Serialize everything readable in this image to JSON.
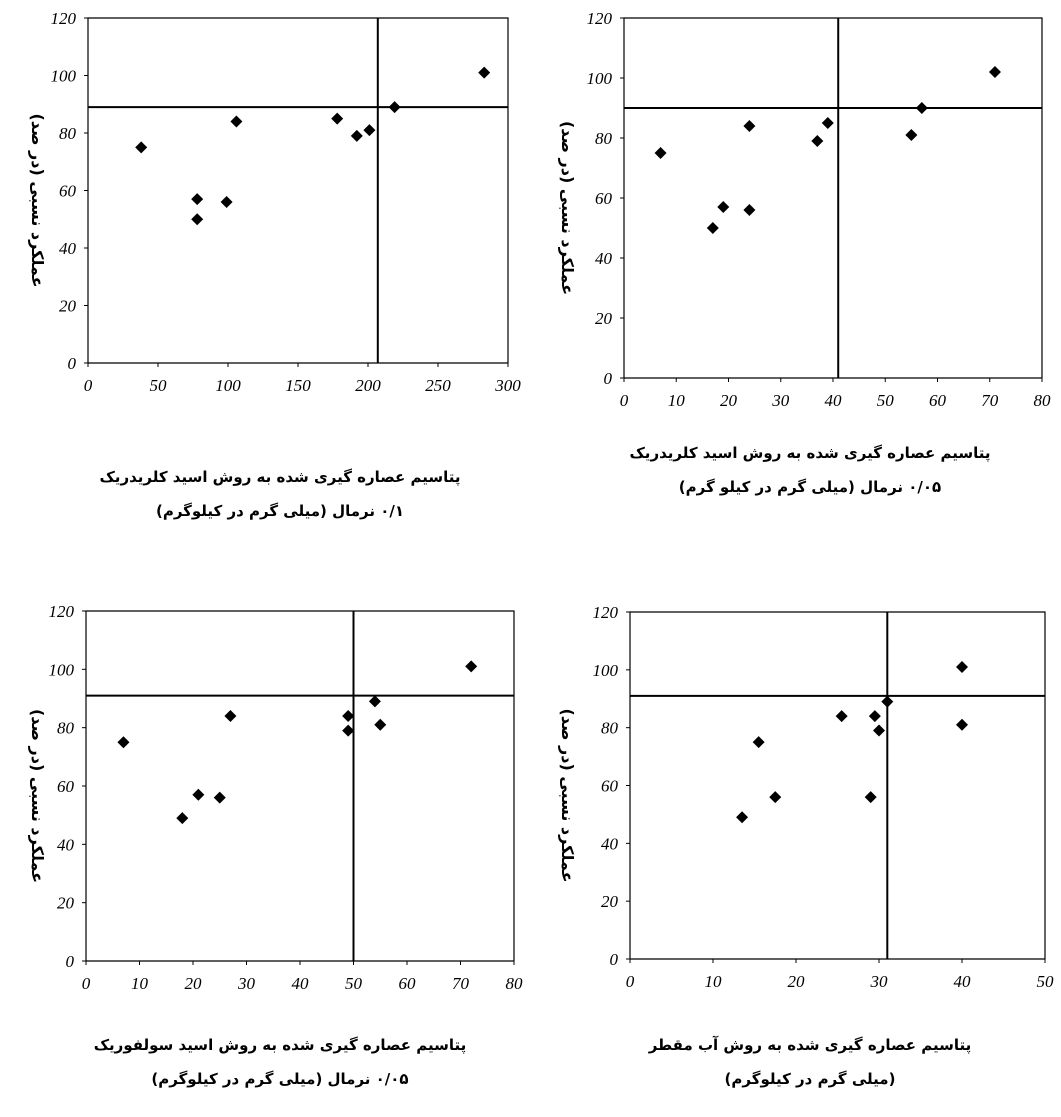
{
  "chart_data": [
    {
      "type": "scatter",
      "ylabel": "عملکرد نسبی (در صد)",
      "xlabel_lines": [
        "پتاسیم عصاره گیری شده به روش اسید کلریدریک",
        "۰/۱ نرمال (میلی گرم در کیلوگرم)"
      ],
      "xlim": [
        0,
        300
      ],
      "ylim": [
        0,
        120
      ],
      "xticks": [
        "0",
        "50",
        "100",
        "150",
        "200",
        "250",
        "300"
      ],
      "yticks": [
        "0",
        "20",
        "40",
        "60",
        "80",
        "100",
        "120"
      ],
      "points": [
        [
          38,
          75
        ],
        [
          78,
          57
        ],
        [
          78,
          50
        ],
        [
          99,
          56
        ],
        [
          106,
          84
        ],
        [
          178,
          85
        ],
        [
          192,
          79
        ],
        [
          201,
          81
        ],
        [
          219,
          89
        ],
        [
          283,
          101
        ]
      ],
      "critical_x": 207,
      "critical_y": 89
    },
    {
      "type": "scatter",
      "ylabel": "عملکرد نسبی (در صد)",
      "xlabel_lines": [
        "پتاسیم عصاره گیری شده به روش اسید کلریدریک",
        "۰/۰۵ نرمال (میلی گرم در کیلو گرم)"
      ],
      "xlim": [
        0,
        80
      ],
      "ylim": [
        0,
        120
      ],
      "xticks": [
        "0",
        "10",
        "20",
        "30",
        "40",
        "50",
        "60",
        "70",
        "80"
      ],
      "yticks": [
        "0",
        "20",
        "40",
        "60",
        "80",
        "100",
        "120"
      ],
      "points": [
        [
          7,
          75
        ],
        [
          17,
          50
        ],
        [
          19,
          57
        ],
        [
          24,
          56
        ],
        [
          24,
          84
        ],
        [
          37,
          79
        ],
        [
          39,
          85
        ],
        [
          55,
          81
        ],
        [
          57,
          90
        ],
        [
          71,
          102
        ]
      ],
      "critical_x": 41,
      "critical_y": 90
    },
    {
      "type": "scatter",
      "ylabel": "عملکرد نسبی (در صد)",
      "xlabel_lines": [
        "پتاسیم عصاره گیری شده به روش اسید سولفوریک",
        "۰/۰۵ نرمال (میلی گرم در کیلوگرم)"
      ],
      "xlim": [
        0,
        80
      ],
      "ylim": [
        0,
        120
      ],
      "xticks": [
        "0",
        "10",
        "20",
        "30",
        "40",
        "50",
        "60",
        "70",
        "80"
      ],
      "yticks": [
        "0",
        "20",
        "40",
        "60",
        "80",
        "100",
        "120"
      ],
      "points": [
        [
          7,
          75
        ],
        [
          18,
          49
        ],
        [
          21,
          57
        ],
        [
          25,
          56
        ],
        [
          27,
          84
        ],
        [
          49,
          84
        ],
        [
          49,
          79
        ],
        [
          54,
          89
        ],
        [
          55,
          81
        ],
        [
          72,
          101
        ]
      ],
      "critical_x": 50,
      "critical_y": 91
    },
    {
      "type": "scatter",
      "ylabel": "عملکرد نسبی (در صد)",
      "xlabel_lines": [
        "پتاسیم عصاره گیری شده به روش آب مقطر",
        "(میلی گرم در کیلوگرم)"
      ],
      "xlim": [
        0,
        50
      ],
      "ylim": [
        0,
        120
      ],
      "xticks": [
        "0",
        "10",
        "20",
        "30",
        "40",
        "50"
      ],
      "yticks": [
        "0",
        "20",
        "40",
        "60",
        "80",
        "100",
        "120"
      ],
      "points": [
        [
          13.5,
          49
        ],
        [
          15.5,
          75
        ],
        [
          17.5,
          56
        ],
        [
          25.5,
          84
        ],
        [
          29,
          56
        ],
        [
          29.5,
          84
        ],
        [
          30,
          79
        ],
        [
          31,
          89
        ],
        [
          40,
          101
        ],
        [
          40,
          81
        ]
      ],
      "critical_x": 31,
      "critical_y": 91
    }
  ]
}
